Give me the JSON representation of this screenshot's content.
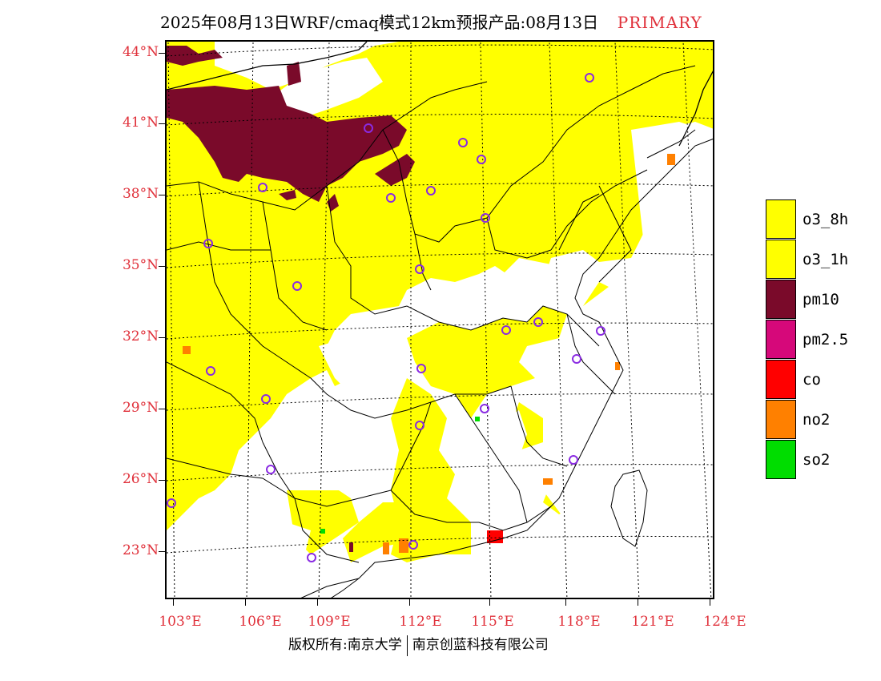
{
  "header": {
    "title": "2025年08月13日WRF/cmaq模式12km预报产品:08月13日",
    "tag": "PRIMARY"
  },
  "map": {
    "lat_labels": [
      "44°N",
      "41°N",
      "38°N",
      "35°N",
      "32°N",
      "29°N",
      "26°N",
      "23°N"
    ],
    "lon_labels": [
      "103°E",
      "106°E",
      "109°E",
      "112°E",
      "115°E",
      "118°E",
      "121°E",
      "124°E"
    ]
  },
  "legend": {
    "items": [
      {
        "label": "o3_8h",
        "color": "#ffff00"
      },
      {
        "label": "o3_1h",
        "color": "#ffff00"
      },
      {
        "label": "pm10",
        "color": "#7a0a2a"
      },
      {
        "label": "pm2.5",
        "color": "#d6087a"
      },
      {
        "label": "co",
        "color": "#ff0000"
      },
      {
        "label": "no2",
        "color": "#ff8000"
      },
      {
        "label": "so2",
        "color": "#00dd00"
      }
    ]
  },
  "footer": {
    "left": "版权所有:南京大学",
    "right": "南京创蓝科技有限公司"
  },
  "colors": {
    "label_red": "#e0303a",
    "station_marker": "#8a2be2"
  }
}
